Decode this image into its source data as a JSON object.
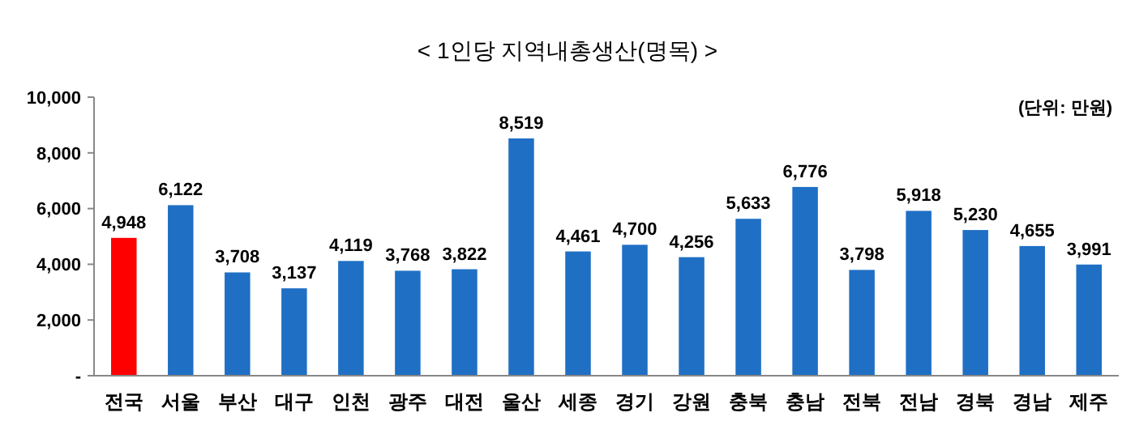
{
  "chart_data": {
    "type": "bar",
    "title": "< 1인당  지역내총생산(명목) >",
    "annotations": [
      "(단위: 만원)"
    ],
    "categories": [
      "전국",
      "서울",
      "부산",
      "대구",
      "인천",
      "광주",
      "대전",
      "울산",
      "세종",
      "경기",
      "강원",
      "충북",
      "충남",
      "전북",
      "전남",
      "경북",
      "경남",
      "제주"
    ],
    "values": [
      4948,
      6122,
      3708,
      3137,
      4119,
      3768,
      3822,
      8519,
      4461,
      4700,
      4256,
      5633,
      6776,
      3798,
      5918,
      5230,
      4655,
      3991
    ],
    "colors": [
      "#ff0000",
      "#1f6fc5",
      "#1f6fc5",
      "#1f6fc5",
      "#1f6fc5",
      "#1f6fc5",
      "#1f6fc5",
      "#1f6fc5",
      "#1f6fc5",
      "#1f6fc5",
      "#1f6fc5",
      "#1f6fc5",
      "#1f6fc5",
      "#1f6fc5",
      "#1f6fc5",
      "#1f6fc5",
      "#1f6fc5",
      "#1f6fc5"
    ],
    "ylim": [
      0,
      10000
    ],
    "yticks": [
      {
        "value": 0,
        "label": "-"
      },
      {
        "value": 2000,
        "label": "2,000"
      },
      {
        "value": 4000,
        "label": "4,000"
      },
      {
        "value": 6000,
        "label": "6,000"
      },
      {
        "value": 8000,
        "label": "8,000"
      },
      {
        "value": 10000,
        "label": "10,000"
      }
    ],
    "value_labels": [
      "4,948",
      "6,122",
      "3,708",
      "3,137",
      "4,119",
      "3,768",
      "3,822",
      "8,519",
      "4,461",
      "4,700",
      "4,256",
      "5,633",
      "6,776",
      "3,798",
      "5,918",
      "5,230",
      "4,655",
      "3,991"
    ],
    "grid": false
  }
}
